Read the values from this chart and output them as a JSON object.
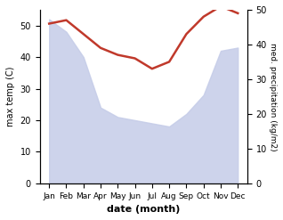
{
  "months": [
    "Jan",
    "Feb",
    "Mar",
    "Apr",
    "May",
    "Jun",
    "Jul",
    "Aug",
    "Sep",
    "Oct",
    "Nov",
    "Dec"
  ],
  "month_x": [
    1,
    2,
    3,
    4,
    5,
    6,
    7,
    8,
    9,
    10,
    11,
    12
  ],
  "precipitation": [
    52,
    48,
    40,
    24,
    21,
    20,
    19,
    18,
    22,
    28,
    42,
    43
  ],
  "temperature": [
    46,
    47,
    43,
    39,
    37,
    36,
    33,
    35,
    43,
    48,
    51,
    49
  ],
  "temp_color": "#c0392b",
  "precip_color": "#aab4d8",
  "precip_fill_color": "#c5cce8",
  "ylim_left": [
    0,
    55
  ],
  "ylim_right": [
    0,
    50
  ],
  "yticks_left": [
    0,
    10,
    20,
    30,
    40,
    50
  ],
  "yticks_right": [
    0,
    10,
    20,
    30,
    40,
    50
  ],
  "xlabel": "date (month)",
  "ylabel_left": "max temp (C)",
  "ylabel_right": "med. precipitation (kg/m2)"
}
